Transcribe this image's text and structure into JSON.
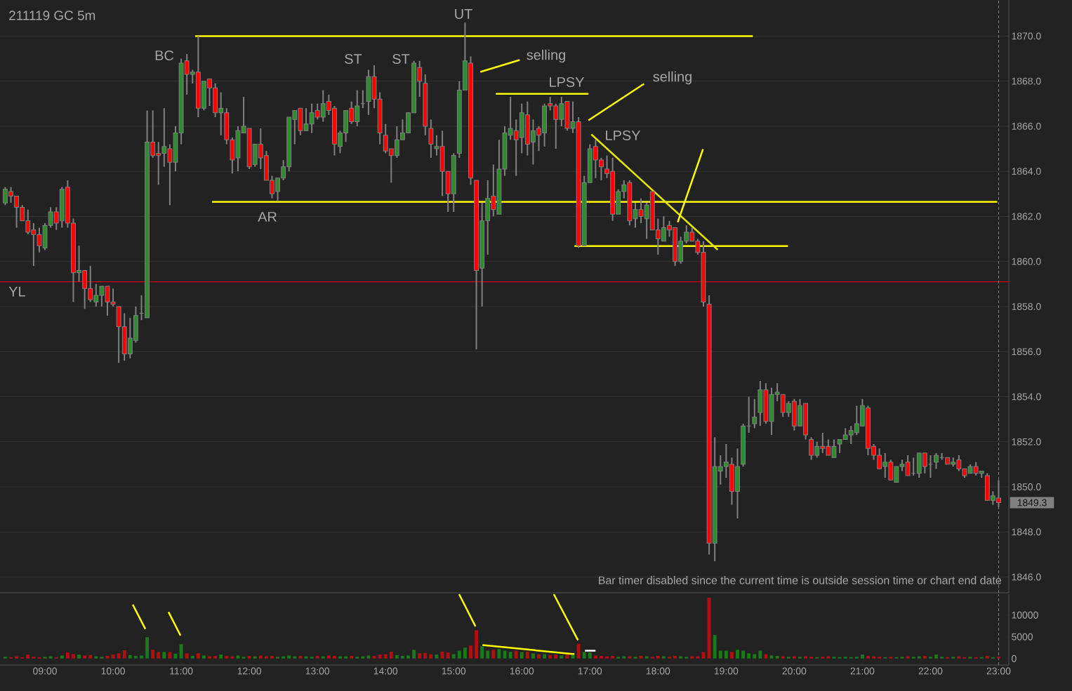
{
  "chart_data": [
    {
      "type": "candlestick",
      "title": "211119 GC 5m",
      "x": [
        8.4167,
        8.5,
        8.5833,
        8.6667,
        8.75,
        8.8333,
        8.9167,
        9,
        9.0833,
        9.1667,
        9.25,
        9.3333,
        9.4167,
        9.5,
        9.5833,
        9.6667,
        9.75,
        9.8333,
        9.9167,
        10,
        10.0833,
        10.1667,
        10.25,
        10.3333,
        10.4167,
        10.5,
        10.5833,
        10.6667,
        10.75,
        10.8333,
        10.9167,
        11,
        11.0833,
        11.1667,
        11.25,
        11.3333,
        11.4167,
        11.5,
        11.5833,
        11.6667,
        11.75,
        11.8333,
        11.9167,
        12,
        12.0833,
        12.1667,
        12.25,
        12.3333,
        12.4167,
        12.5,
        12.5833,
        12.6667,
        12.75,
        12.8333,
        12.9167,
        13,
        13.0833,
        13.1667,
        13.25,
        13.3333,
        13.4167,
        13.5,
        13.5833,
        13.6667,
        13.75,
        13.8333,
        13.9167,
        14,
        14.0833,
        14.1667,
        14.25,
        14.3333,
        14.4167,
        14.5,
        14.5833,
        14.6667,
        14.75,
        14.8333,
        14.9167,
        15,
        15.0833,
        15.1667,
        15.25,
        15.3333,
        15.4167,
        15.5,
        15.5833,
        15.6667,
        15.75,
        15.8333,
        15.9167,
        16,
        16.0833,
        16.1667,
        16.25,
        16.3333,
        16.4167,
        16.5,
        16.5833,
        16.6667,
        16.75,
        16.8333,
        16.9167,
        17,
        17.0833,
        17.1667,
        17.25,
        17.3333,
        17.4167,
        17.5,
        17.5833,
        17.6667,
        17.75,
        17.8333,
        17.9167,
        18,
        18.0833,
        18.1667,
        18.25,
        18.3333,
        18.4167,
        18.5,
        18.5833,
        18.6667,
        18.75,
        18.8333,
        18.9167,
        19,
        19.0833,
        19.1667,
        19.25,
        19.3333,
        19.4167,
        19.5,
        19.5833,
        19.6667,
        19.75,
        19.8333,
        19.9167,
        20,
        20.0833,
        20.1667,
        20.25,
        20.3333,
        20.4167,
        20.5,
        20.5833,
        20.6667,
        20.75,
        20.8333,
        20.9167,
        21,
        21.0833,
        21.1667,
        21.25,
        21.3333,
        21.4167,
        21.5,
        21.5833,
        21.6667,
        21.75,
        21.8333,
        21.9167,
        22,
        22.0833,
        22.1667,
        22.25,
        22.3333,
        22.4167,
        22.5,
        22.5833,
        22.6667,
        22.75,
        22.8333,
        22.9167,
        23
      ],
      "ohlc": [
        [
          1862.6,
          1863.3,
          1862.5,
          1863.2
        ],
        [
          1863.1,
          1863.3,
          1862.6,
          1862.9
        ],
        [
          1862.9,
          1862.9,
          1861.5,
          1862.4
        ],
        [
          1862.4,
          1862.5,
          1861.8,
          1861.8
        ],
        [
          1861.8,
          1862.3,
          1861.2,
          1861.3
        ],
        [
          1861.4,
          1861.7,
          1859.8,
          1861.2
        ],
        [
          1861.2,
          1861.5,
          1860.4,
          1860.7
        ],
        [
          1860.6,
          1861.7,
          1860.5,
          1861.6
        ],
        [
          1861.6,
          1862.4,
          1861.5,
          1862.2
        ],
        [
          1862.2,
          1862.4,
          1861.4,
          1861.7
        ],
        [
          1861.8,
          1863.3,
          1861.5,
          1863.2
        ],
        [
          1863.3,
          1863.6,
          1861.5,
          1861.7
        ],
        [
          1861.7,
          1861.9,
          1858.2,
          1859.5
        ],
        [
          1859.5,
          1860.7,
          1859.1,
          1859.6
        ],
        [
          1859.6,
          1859.6,
          1857.9,
          1858.8
        ],
        [
          1858.8,
          1859.8,
          1858.2,
          1858.3
        ],
        [
          1858.2,
          1859.0,
          1858.0,
          1858.5
        ],
        [
          1858.5,
          1858.9,
          1858.0,
          1858.9
        ],
        [
          1858.9,
          1858.9,
          1857.6,
          1858.2
        ],
        [
          1858.2,
          1858.8,
          1858.0,
          1858.1
        ],
        [
          1858.0,
          1858.0,
          1855.5,
          1857.1
        ],
        [
          1857.1,
          1857.7,
          1855.6,
          1855.9
        ],
        [
          1855.9,
          1857.5,
          1855.7,
          1856.6
        ],
        [
          1856.5,
          1858.0,
          1856.4,
          1857.6
        ],
        [
          1857.7,
          1858.5,
          1857.4,
          1857.7
        ],
        [
          1857.5,
          1866.7,
          1857.5,
          1865.3
        ],
        [
          1865.3,
          1866.7,
          1864.6,
          1864.7
        ],
        [
          1864.8,
          1865.3,
          1863.4,
          1864.7
        ],
        [
          1864.8,
          1866.8,
          1864.2,
          1865.1
        ],
        [
          1865.0,
          1865.2,
          1862.5,
          1864.4
        ],
        [
          1864.4,
          1866.0,
          1864.0,
          1865.7
        ],
        [
          1865.7,
          1869.0,
          1865.2,
          1868.8
        ],
        [
          1868.9,
          1869.2,
          1867.4,
          1868.3
        ],
        [
          1868.3,
          1868.5,
          1867.9,
          1868.4
        ],
        [
          1868.4,
          1870.0,
          1866.4,
          1866.8
        ],
        [
          1866.8,
          1868.0,
          1866.7,
          1868.0
        ],
        [
          1868.1,
          1868.1,
          1866.9,
          1867.7
        ],
        [
          1867.7,
          1867.9,
          1866.4,
          1866.6
        ],
        [
          1866.6,
          1867.5,
          1865.6,
          1866.8
        ],
        [
          1866.6,
          1866.8,
          1865.2,
          1865.4
        ],
        [
          1865.4,
          1865.5,
          1863.9,
          1864.5
        ],
        [
          1864.6,
          1866.0,
          1864.0,
          1865.8
        ],
        [
          1865.7,
          1867.3,
          1865.7,
          1866.0
        ],
        [
          1865.9,
          1865.9,
          1864.1,
          1864.2
        ],
        [
          1864.3,
          1865.2,
          1864.2,
          1865.2
        ],
        [
          1865.2,
          1865.9,
          1864.1,
          1864.6
        ],
        [
          1864.7,
          1864.9,
          1863.6,
          1863.6
        ],
        [
          1863.6,
          1863.8,
          1862.8,
          1863.0
        ],
        [
          1863.1,
          1863.7,
          1862.7,
          1863.7
        ],
        [
          1863.7,
          1864.5,
          1863.6,
          1864.2
        ],
        [
          1864.2,
          1866.4,
          1864.0,
          1866.4
        ],
        [
          1866.3,
          1866.7,
          1865.2,
          1866.7
        ],
        [
          1866.8,
          1866.8,
          1865.6,
          1865.8
        ],
        [
          1865.8,
          1866.8,
          1865.8,
          1866.1
        ],
        [
          1866.1,
          1867.0,
          1865.7,
          1866.6
        ],
        [
          1866.7,
          1867.0,
          1866.3,
          1866.4
        ],
        [
          1866.4,
          1867.6,
          1866.2,
          1867.0
        ],
        [
          1867.1,
          1867.4,
          1866.5,
          1866.7
        ],
        [
          1866.8,
          1866.9,
          1864.7,
          1865.2
        ],
        [
          1865.1,
          1865.8,
          1864.8,
          1865.7
        ],
        [
          1865.7,
          1866.7,
          1865.3,
          1866.7
        ],
        [
          1866.8,
          1867.1,
          1866.1,
          1866.2
        ],
        [
          1866.2,
          1867.6,
          1866.0,
          1866.9
        ],
        [
          1867.0,
          1867.6,
          1866.8,
          1867.0
        ],
        [
          1867.1,
          1868.5,
          1866.5,
          1868.2
        ],
        [
          1868.2,
          1868.7,
          1866.8,
          1867.2
        ],
        [
          1867.2,
          1867.5,
          1865.2,
          1865.7
        ],
        [
          1865.6,
          1866.1,
          1864.8,
          1864.9
        ],
        [
          1865.0,
          1865.0,
          1863.5,
          1864.7
        ],
        [
          1864.7,
          1866.0,
          1864.6,
          1865.4
        ],
        [
          1865.4,
          1866.3,
          1865.4,
          1865.7
        ],
        [
          1865.7,
          1866.6,
          1865.7,
          1866.6
        ],
        [
          1866.6,
          1868.9,
          1866.6,
          1868.8
        ],
        [
          1868.6,
          1868.9,
          1867.3,
          1868.0
        ],
        [
          1867.9,
          1868.3,
          1865.6,
          1866.0
        ],
        [
          1865.9,
          1866.3,
          1864.6,
          1865.2
        ],
        [
          1865.0,
          1865.6,
          1864.7,
          1865.1
        ],
        [
          1865.1,
          1865.8,
          1862.9,
          1864.0
        ],
        [
          1864.0,
          1864.0,
          1862.2,
          1863.0
        ],
        [
          1863.0,
          1864.8,
          1862.2,
          1864.7
        ],
        [
          1864.8,
          1868.0,
          1864.6,
          1867.6
        ],
        [
          1867.6,
          1870.6,
          1867.6,
          1868.9
        ],
        [
          1868.8,
          1869.1,
          1863.4,
          1863.7
        ],
        [
          1863.6,
          1863.6,
          1856.1,
          1859.6
        ],
        [
          1859.7,
          1862.6,
          1858.0,
          1861.8
        ],
        [
          1861.8,
          1863.6,
          1860.3,
          1862.8
        ],
        [
          1862.9,
          1864.3,
          1862.0,
          1862.3
        ],
        [
          1862.1,
          1865.4,
          1862.1,
          1864.1
        ],
        [
          1864.1,
          1866.0,
          1863.8,
          1865.7
        ],
        [
          1865.6,
          1867.3,
          1865.4,
          1865.9
        ],
        [
          1865.8,
          1866.3,
          1863.8,
          1865.4
        ],
        [
          1865.5,
          1867.0,
          1864.8,
          1866.6
        ],
        [
          1866.5,
          1867.1,
          1864.7,
          1865.2
        ],
        [
          1865.3,
          1866.3,
          1864.3,
          1865.8
        ],
        [
          1865.9,
          1866.0,
          1864.9,
          1865.6
        ],
        [
          1865.7,
          1867.0,
          1865.1,
          1866.9
        ],
        [
          1867.0,
          1867.3,
          1866.7,
          1866.9
        ],
        [
          1866.9,
          1867.0,
          1865.0,
          1866.3
        ],
        [
          1866.3,
          1867.3,
          1866.0,
          1867.0
        ],
        [
          1867.1,
          1867.1,
          1865.8,
          1865.9
        ],
        [
          1865.9,
          1867.1,
          1865.7,
          1866.2
        ],
        [
          1866.2,
          1866.4,
          1860.6,
          1860.7
        ],
        [
          1860.7,
          1863.8,
          1860.7,
          1863.5
        ],
        [
          1863.5,
          1865.2,
          1863.5,
          1865.0
        ],
        [
          1865.1,
          1865.4,
          1863.7,
          1864.5
        ],
        [
          1864.5,
          1864.6,
          1863.6,
          1864.2
        ],
        [
          1864.1,
          1864.7,
          1863.7,
          1863.9
        ],
        [
          1864.0,
          1864.6,
          1861.8,
          1862.1
        ],
        [
          1862.1,
          1863.2,
          1862.1,
          1863.1
        ],
        [
          1863.1,
          1863.6,
          1862.8,
          1863.4
        ],
        [
          1863.5,
          1863.6,
          1861.6,
          1861.8
        ],
        [
          1861.9,
          1862.6,
          1861.5,
          1862.3
        ],
        [
          1862.3,
          1862.8,
          1861.7,
          1862.0
        ],
        [
          1861.9,
          1862.6,
          1861.0,
          1862.5
        ],
        [
          1863.1,
          1863.1,
          1861.4,
          1861.4
        ],
        [
          1861.4,
          1861.9,
          1860.3,
          1861.0
        ],
        [
          1860.9,
          1862.0,
          1860.9,
          1861.5
        ],
        [
          1861.6,
          1861.8,
          1861.1,
          1861.4
        ],
        [
          1861.5,
          1861.5,
          1859.8,
          1860.0
        ],
        [
          1860.0,
          1861.1,
          1859.9,
          1860.9
        ],
        [
          1860.9,
          1861.6,
          1860.8,
          1861.3
        ],
        [
          1861.3,
          1861.5,
          1860.9,
          1860.9
        ],
        [
          1860.9,
          1861.0,
          1860.3,
          1860.4
        ],
        [
          1860.4,
          1860.9,
          1858.0,
          1858.2
        ],
        [
          1858.1,
          1858.5,
          1847.0,
          1847.5
        ],
        [
          1847.5,
          1852.2,
          1846.7,
          1850.9
        ],
        [
          1850.7,
          1851.4,
          1850.1,
          1850.9
        ],
        [
          1850.9,
          1851.9,
          1850.4,
          1851.1
        ],
        [
          1851.0,
          1851.3,
          1849.2,
          1849.8
        ],
        [
          1849.8,
          1851.7,
          1848.6,
          1850.9
        ],
        [
          1851.0,
          1852.8,
          1850.9,
          1852.7
        ],
        [
          1852.7,
          1854.0,
          1852.4,
          1852.7
        ],
        [
          1852.8,
          1853.9,
          1852.6,
          1853.1
        ],
        [
          1853.3,
          1854.7,
          1852.7,
          1854.3
        ],
        [
          1854.3,
          1854.6,
          1852.8,
          1852.9
        ],
        [
          1852.9,
          1854.4,
          1852.3,
          1854.1
        ],
        [
          1854.1,
          1854.6,
          1853.8,
          1854.2
        ],
        [
          1854.1,
          1854.1,
          1853.1,
          1853.3
        ],
        [
          1853.3,
          1853.8,
          1853.1,
          1853.7
        ],
        [
          1853.8,
          1853.9,
          1852.5,
          1852.7
        ],
        [
          1852.7,
          1853.9,
          1852.7,
          1853.6
        ],
        [
          1853.7,
          1853.7,
          1852.1,
          1852.3
        ],
        [
          1852.1,
          1852.2,
          1851.2,
          1851.4
        ],
        [
          1851.4,
          1852.0,
          1851.3,
          1851.8
        ],
        [
          1851.8,
          1852.4,
          1851.5,
          1851.7
        ],
        [
          1851.8,
          1852.1,
          1851.4,
          1851.4
        ],
        [
          1851.3,
          1852.1,
          1851.3,
          1851.8
        ],
        [
          1851.9,
          1852.1,
          1851.5,
          1852.1
        ],
        [
          1852.1,
          1852.6,
          1852.1,
          1852.3
        ],
        [
          1852.3,
          1852.7,
          1851.9,
          1852.5
        ],
        [
          1852.4,
          1853.6,
          1852.3,
          1852.8
        ],
        [
          1852.7,
          1853.9,
          1852.7,
          1853.6
        ],
        [
          1853.5,
          1853.6,
          1851.4,
          1851.7
        ],
        [
          1851.8,
          1851.9,
          1851.2,
          1851.4
        ],
        [
          1851.4,
          1851.7,
          1850.8,
          1850.8
        ],
        [
          1850.9,
          1851.5,
          1850.4,
          1851.1
        ],
        [
          1851.1,
          1851.2,
          1850.3,
          1850.3
        ],
        [
          1850.2,
          1850.9,
          1850.2,
          1850.9
        ],
        [
          1850.9,
          1851.2,
          1850.7,
          1851.0
        ],
        [
          1851.1,
          1851.4,
          1850.5,
          1850.5
        ],
        [
          1850.6,
          1851.3,
          1850.5,
          1850.6
        ],
        [
          1850.6,
          1851.5,
          1850.4,
          1851.5
        ],
        [
          1851.5,
          1851.5,
          1850.6,
          1850.9
        ],
        [
          1851.0,
          1851.4,
          1850.4,
          1851.0
        ],
        [
          1851.1,
          1851.5,
          1850.8,
          1851.4
        ],
        [
          1851.3,
          1851.5,
          1851.2,
          1851.3
        ],
        [
          1851.3,
          1851.3,
          1851.0,
          1851.0
        ],
        [
          1851.0,
          1851.3,
          1850.9,
          1851.1
        ],
        [
          1851.2,
          1851.4,
          1850.7,
          1850.8
        ],
        [
          1850.8,
          1850.8,
          1850.4,
          1850.5
        ],
        [
          1850.6,
          1851.0,
          1850.6,
          1850.9
        ],
        [
          1850.9,
          1851.1,
          1850.5,
          1850.6
        ],
        [
          1850.6,
          1850.7,
          1850.4,
          1850.7
        ],
        [
          1850.5,
          1850.6,
          1849.4,
          1849.4
        ],
        [
          1849.4,
          1849.8,
          1849.2,
          1849.6
        ],
        [
          1849.5,
          1850.3,
          1849.1,
          1849.3
        ]
      ],
      "colors": [
        "#2e8b2e",
        "#ff0000",
        "#ff0000",
        "#ff0000",
        "#ff0000",
        "#ff0000",
        "#ff0000",
        "#2e8b2e",
        "#2e8b2e",
        "#ff0000",
        "#2e8b2e",
        "#ff0000",
        "#ff0000",
        "#2e8b2e",
        "#ff0000",
        "#ff0000",
        "#2e8b2e",
        "#2e8b2e",
        "#ff0000",
        "#ff0000",
        "#ff0000",
        "#ff0000",
        "#2e8b2e",
        "#2e8b2e",
        "#808080",
        "#2e8b2e",
        "#ff0000",
        "#ff0000",
        "#2e8b2e",
        "#ff0000",
        "#2e8b2e",
        "#2e8b2e",
        "#ff0000",
        "#2e8b2e",
        "#ff0000",
        "#2e8b2e",
        "#ff0000",
        "#ff0000",
        "#2e8b2e",
        "#ff0000",
        "#ff0000",
        "#2e8b2e",
        "#2e8b2e",
        "#ff0000",
        "#2e8b2e",
        "#ff0000",
        "#ff0000",
        "#ff0000",
        "#2e8b2e",
        "#2e8b2e",
        "#2e8b2e",
        "#2e8b2e",
        "#ff0000",
        "#2e8b2e",
        "#2e8b2e",
        "#ff0000",
        "#2e8b2e",
        "#ff0000",
        "#ff0000",
        "#2e8b2e",
        "#2e8b2e",
        "#ff0000",
        "#2e8b2e",
        "#808080",
        "#2e8b2e",
        "#ff0000",
        "#ff0000",
        "#ff0000",
        "#ff0000",
        "#2e8b2e",
        "#2e8b2e",
        "#2e8b2e",
        "#2e8b2e",
        "#ff0000",
        "#ff0000",
        "#ff0000",
        "#2e8b2e",
        "#ff0000",
        "#ff0000",
        "#2e8b2e",
        "#2e8b2e",
        "#2e8b2e",
        "#ff0000",
        "#ff0000",
        "#2e8b2e",
        "#2e8b2e",
        "#ff0000",
        "#2e8b2e",
        "#2e8b2e",
        "#2e8b2e",
        "#ff0000",
        "#2e8b2e",
        "#ff0000",
        "#2e8b2e",
        "#ff0000",
        "#2e8b2e",
        "#ff0000",
        "#ff0000",
        "#2e8b2e",
        "#ff0000",
        "#2e8b2e",
        "#ff0000",
        "#2e8b2e",
        "#2e8b2e",
        "#ff0000",
        "#ff0000",
        "#ff0000",
        "#ff0000",
        "#2e8b2e",
        "#2e8b2e",
        "#ff0000",
        "#2e8b2e",
        "#ff0000",
        "#2e8b2e",
        "#ff0000",
        "#ff0000",
        "#2e8b2e",
        "#ff0000",
        "#ff0000",
        "#2e8b2e",
        "#2e8b2e",
        "#ff0000",
        "#ff0000",
        "#ff0000",
        "#ff0000",
        "#2e8b2e",
        "#2e8b2e",
        "#2e8b2e",
        "#ff0000",
        "#2e8b2e",
        "#2e8b2e",
        "#808080",
        "#2e8b2e",
        "#2e8b2e",
        "#ff0000",
        "#2e8b2e",
        "#2e8b2e",
        "#ff0000",
        "#2e8b2e",
        "#ff0000",
        "#2e8b2e",
        "#ff0000",
        "#ff0000",
        "#2e8b2e",
        "#ff0000",
        "#ff0000",
        "#2e8b2e",
        "#2e8b2e",
        "#2e8b2e",
        "#2e8b2e",
        "#2e8b2e",
        "#2e8b2e",
        "#ff0000",
        "#ff0000",
        "#ff0000",
        "#2e8b2e",
        "#ff0000",
        "#2e8b2e",
        "#2e8b2e",
        "#ff0000",
        "#808080",
        "#2e8b2e",
        "#ff0000",
        "#808080",
        "#2e8b2e",
        "#808080",
        "#ff0000",
        "#2e8b2e",
        "#ff0000",
        "#ff0000",
        "#2e8b2e",
        "#ff0000",
        "#2e8b2e",
        "#ff0000",
        "#2e8b2e",
        "#ff0000"
      ],
      "xlim": [
        8.34,
        23.15
      ],
      "ylim": [
        1845.3,
        1871.6
      ],
      "yticks": [
        {
          "value": 1846,
          "label": "1846.0"
        },
        {
          "value": 1848,
          "label": "1848.0"
        },
        {
          "value": 1850,
          "label": "1850.0"
        },
        {
          "value": 1852,
          "label": "1852.0"
        },
        {
          "value": 1854,
          "label": "1854.0"
        },
        {
          "value": 1856,
          "label": "1856.0"
        },
        {
          "value": 1858,
          "label": "1858.0"
        },
        {
          "value": 1860,
          "label": "1860.0"
        },
        {
          "value": 1862,
          "label": "1862.0"
        },
        {
          "value": 1864,
          "label": "1864.0"
        },
        {
          "value": 1866,
          "label": "1866.0"
        },
        {
          "value": 1868,
          "label": "1868.0"
        },
        {
          "value": 1870,
          "label": "1870.0"
        }
      ],
      "grid": "y",
      "tick_labels": "y",
      "annotations": [
        "BC",
        "AR",
        "ST",
        "ST",
        "UT",
        "selling",
        "LPSY",
        "selling",
        "LPSY",
        {
          "text": "1849.3",
          "x": 23.0,
          "y": 1849.3
        },
        "Bar timer disabled since the current time is outside session time or chart end date"
      ],
      "ref_lines": [
        {
          "axis": "y",
          "value": 1859.1,
          "label": "YL",
          "color": "#cc0000"
        },
        {
          "axis": "x",
          "value": 23,
          "color": "#808080",
          "line_style": "dashed"
        }
      ],
      "series": [
        {
          "type": "line",
          "x": [
            11.206,
            19.392
          ],
          "values": [
            1870.0,
            1870.0
          ],
          "color": "#ffff00"
        },
        {
          "type": "line",
          "x": [
            11.454,
            22.979
          ],
          "values": [
            1862.64,
            1862.64
          ],
          "color": "#ffff00"
        },
        {
          "type": "line",
          "x": [
            16.773,
            19.907
          ],
          "values": [
            1860.68,
            1860.68
          ],
          "color": "#ffff00"
        },
        {
          "type": "line",
          "x": [
            15.619,
            16.979
          ],
          "values": [
            1867.44,
            1867.44
          ],
          "color": "#ffff00"
        },
        {
          "type": "line",
          "x": [
            17.021,
            18.876
          ],
          "values": [
            1865.64,
            1860.52
          ],
          "color": "#e6e600"
        },
        {
          "type": "line",
          "x": [
            15.969,
            15.392
          ],
          "values": [
            1868.94,
            1868.41
          ],
          "color": "#ffff00"
        },
        {
          "type": "line",
          "x": [
            17.794,
            16.979
          ],
          "values": [
            1867.88,
            1866.26
          ],
          "color": "#ffff00"
        },
        {
          "type": "line",
          "x": [
            18.66,
            18.289
          ],
          "values": [
            1864.98,
            1861.74
          ],
          "color": "#ffff00"
        }
      ]
    },
    {
      "type": "bar",
      "x": [
        8.4167,
        8.5,
        8.5833,
        8.6667,
        8.75,
        8.8333,
        8.9167,
        9,
        9.0833,
        9.1667,
        9.25,
        9.3333,
        9.4167,
        9.5,
        9.5833,
        9.6667,
        9.75,
        9.8333,
        9.9167,
        10,
        10.0833,
        10.1667,
        10.25,
        10.3333,
        10.4167,
        10.5,
        10.5833,
        10.6667,
        10.75,
        10.8333,
        10.9167,
        11,
        11.0833,
        11.1667,
        11.25,
        11.3333,
        11.4167,
        11.5,
        11.5833,
        11.6667,
        11.75,
        11.8333,
        11.9167,
        12,
        12.0833,
        12.1667,
        12.25,
        12.3333,
        12.4167,
        12.5,
        12.5833,
        12.6667,
        12.75,
        12.8333,
        12.9167,
        13,
        13.0833,
        13.1667,
        13.25,
        13.3333,
        13.4167,
        13.5,
        13.5833,
        13.6667,
        13.75,
        13.8333,
        13.9167,
        14,
        14.0833,
        14.1667,
        14.25,
        14.3333,
        14.4167,
        14.5,
        14.5833,
        14.6667,
        14.75,
        14.8333,
        14.9167,
        15,
        15.0833,
        15.1667,
        15.25,
        15.3333,
        15.4167,
        15.5,
        15.5833,
        15.6667,
        15.75,
        15.8333,
        15.9167,
        16,
        16.0833,
        16.1667,
        16.25,
        16.3333,
        16.4167,
        16.5,
        16.5833,
        16.6667,
        16.75,
        16.8333,
        16.9167,
        17,
        17.0833,
        17.1667,
        17.25,
        17.3333,
        17.4167,
        17.5,
        17.5833,
        17.6667,
        17.75,
        17.8333,
        17.9167,
        18,
        18.0833,
        18.1667,
        18.25,
        18.3333,
        18.4167,
        18.5,
        18.5833,
        18.6667,
        18.75,
        18.8333,
        18.9167,
        19,
        19.0833,
        19.1667,
        19.25,
        19.3333,
        19.4167,
        19.5,
        19.5833,
        19.6667,
        19.75,
        19.8333,
        19.9167,
        20,
        20.0833,
        20.1667,
        20.25,
        20.3333,
        20.4167,
        20.5,
        20.5833,
        20.6667,
        20.75,
        20.8333,
        20.9167,
        21,
        21.0833,
        21.1667,
        21.25,
        21.3333,
        21.4167,
        21.5,
        21.5833,
        21.6667,
        21.75,
        21.8333,
        21.9167,
        22,
        22.0833,
        22.1667,
        22.25,
        22.3333,
        22.4167,
        22.5,
        22.5833,
        22.6667,
        22.75,
        22.8333,
        22.9167,
        23
      ],
      "values": [
        400,
        300,
        500,
        300,
        900,
        400,
        300,
        400,
        500,
        300,
        700,
        1400,
        1000,
        900,
        700,
        800,
        500,
        400,
        600,
        900,
        1200,
        1900,
        800,
        600,
        700,
        4900,
        2000,
        1500,
        1500,
        1500,
        1100,
        3300,
        1200,
        600,
        1200,
        700,
        500,
        600,
        900,
        600,
        500,
        700,
        400,
        600,
        500,
        700,
        500,
        600,
        400,
        500,
        700,
        500,
        600,
        500,
        400,
        600,
        500,
        700,
        600,
        500,
        500,
        600,
        400,
        500,
        700,
        600,
        900,
        1000,
        1600,
        800,
        600,
        700,
        2000,
        1200,
        1300,
        1000,
        900,
        1600,
        1400,
        1000,
        1800,
        2500,
        3000,
        6500,
        2800,
        1800,
        2000,
        2200,
        1800,
        1500,
        1800,
        1500,
        1600,
        1200,
        1000,
        1000,
        800,
        900,
        700,
        900,
        800,
        3400,
        1500,
        1400,
        700,
        600,
        500,
        600,
        400,
        500,
        500,
        400,
        600,
        500,
        400,
        600,
        500,
        400,
        600,
        500,
        400,
        500,
        500,
        1500,
        14000,
        5400,
        1800,
        1800,
        1500,
        2000,
        1800,
        1200,
        1000,
        1800,
        1000,
        700,
        600,
        500,
        400,
        500,
        400,
        500,
        400,
        300,
        400,
        500,
        400,
        300,
        400,
        300,
        400,
        900,
        600,
        500,
        400,
        300,
        400,
        300,
        400,
        500,
        400,
        500,
        600,
        400,
        900,
        400,
        300,
        400,
        500,
        300,
        400,
        300,
        300,
        600,
        300,
        400
      ],
      "colors": [
        "#1a7a1a",
        "#b01010",
        "#b01010",
        "#b01010",
        "#b01010",
        "#b01010",
        "#b01010",
        "#1a7a1a",
        "#1a7a1a",
        "#b01010",
        "#1a7a1a",
        "#b01010",
        "#b01010",
        "#1a7a1a",
        "#b01010",
        "#b01010",
        "#1a7a1a",
        "#1a7a1a",
        "#b01010",
        "#b01010",
        "#b01010",
        "#b01010",
        "#1a7a1a",
        "#1a7a1a",
        "#1a7a1a",
        "#1a7a1a",
        "#b01010",
        "#b01010",
        "#1a7a1a",
        "#b01010",
        "#1a7a1a",
        "#1a7a1a",
        "#b01010",
        "#1a7a1a",
        "#b01010",
        "#1a7a1a",
        "#b01010",
        "#b01010",
        "#1a7a1a",
        "#b01010",
        "#b01010",
        "#1a7a1a",
        "#1a7a1a",
        "#b01010",
        "#1a7a1a",
        "#b01010",
        "#b01010",
        "#b01010",
        "#1a7a1a",
        "#1a7a1a",
        "#1a7a1a",
        "#1a7a1a",
        "#b01010",
        "#1a7a1a",
        "#1a7a1a",
        "#b01010",
        "#1a7a1a",
        "#b01010",
        "#b01010",
        "#1a7a1a",
        "#1a7a1a",
        "#b01010",
        "#1a7a1a",
        "#1a7a1a",
        "#1a7a1a",
        "#b01010",
        "#b01010",
        "#b01010",
        "#b01010",
        "#1a7a1a",
        "#1a7a1a",
        "#1a7a1a",
        "#1a7a1a",
        "#b01010",
        "#b01010",
        "#b01010",
        "#1a7a1a",
        "#b01010",
        "#b01010",
        "#1a7a1a",
        "#1a7a1a",
        "#1a7a1a",
        "#b01010",
        "#b01010",
        "#1a7a1a",
        "#1a7a1a",
        "#b01010",
        "#1a7a1a",
        "#1a7a1a",
        "#1a7a1a",
        "#b01010",
        "#1a7a1a",
        "#b01010",
        "#1a7a1a",
        "#b01010",
        "#1a7a1a",
        "#b01010",
        "#b01010",
        "#1a7a1a",
        "#b01010",
        "#1a7a1a",
        "#b01010",
        "#1a7a1a",
        "#1a7a1a",
        "#b01010",
        "#b01010",
        "#b01010",
        "#b01010",
        "#1a7a1a",
        "#1a7a1a",
        "#b01010",
        "#1a7a1a",
        "#b01010",
        "#1a7a1a",
        "#b01010",
        "#b01010",
        "#1a7a1a",
        "#b01010",
        "#b01010",
        "#1a7a1a",
        "#1a7a1a",
        "#b01010",
        "#b01010",
        "#b01010",
        "#b01010",
        "#1a7a1a",
        "#1a7a1a",
        "#1a7a1a",
        "#b01010",
        "#1a7a1a",
        "#1a7a1a",
        "#1a7a1a",
        "#1a7a1a",
        "#1a7a1a",
        "#b01010",
        "#1a7a1a",
        "#1a7a1a",
        "#b01010",
        "#1a7a1a",
        "#b01010",
        "#1a7a1a",
        "#b01010",
        "#b01010",
        "#1a7a1a",
        "#b01010",
        "#b01010",
        "#1a7a1a",
        "#1a7a1a",
        "#1a7a1a",
        "#1a7a1a",
        "#1a7a1a",
        "#1a7a1a",
        "#b01010",
        "#b01010",
        "#b01010",
        "#1a7a1a",
        "#b01010",
        "#1a7a1a",
        "#1a7a1a",
        "#b01010",
        "#1a7a1a",
        "#1a7a1a",
        "#b01010",
        "#1a7a1a",
        "#1a7a1a",
        "#1a7a1a",
        "#b01010",
        "#1a7a1a",
        "#b01010",
        "#b01010",
        "#1a7a1a",
        "#b01010",
        "#1a7a1a",
        "#b01010",
        "#1a7a1a",
        "#b01010"
      ],
      "xlim": [
        8.34,
        23.15
      ],
      "ylim": [
        -1500,
        14800
      ],
      "xticks": [
        {
          "value": 9,
          "label": "09:00"
        },
        {
          "value": 10,
          "label": "10:00"
        },
        {
          "value": 11,
          "label": "11:00"
        },
        {
          "value": 12,
          "label": "12:00"
        },
        {
          "value": 13,
          "label": "13:00"
        },
        {
          "value": 14,
          "label": "14:00"
        },
        {
          "value": 15,
          "label": "15:00"
        },
        {
          "value": 16,
          "label": "16:00"
        },
        {
          "value": 17,
          "label": "17:00"
        },
        {
          "value": 18,
          "label": "18:00"
        },
        {
          "value": 19,
          "label": "19:00"
        },
        {
          "value": 20,
          "label": "20:00"
        },
        {
          "value": 21,
          "label": "21:00"
        },
        {
          "value": 22,
          "label": "22:00"
        },
        {
          "value": 23,
          "label": "23:00"
        }
      ],
      "yticks": [
        0,
        5000,
        10000
      ],
      "ref_lines": [
        {
          "axis": "x",
          "value": 23,
          "color": "#808080",
          "line_style": "dashed"
        }
      ],
      "series": [
        {
          "type": "line",
          "x": [
            10.289,
            10.474
          ],
          "values": [
            12400,
            6800
          ],
          "color": "#ffff00"
        },
        {
          "type": "line",
          "x": [
            10.814,
            10.99
          ],
          "values": [
            10700,
            5300
          ],
          "color": "#ffff00"
        },
        {
          "type": "line",
          "x": [
            15.08,
            15.32
          ],
          "values": [
            14800,
            7400
          ],
          "color": "#ffff00"
        },
        {
          "type": "line",
          "x": [
            16.47,
            16.825
          ],
          "values": [
            14800,
            4200
          ],
          "color": "#ffff00"
        },
        {
          "type": "line",
          "x": [
            15.423,
            16.773
          ],
          "values": [
            3100,
            1000
          ],
          "color": "#ffff00"
        },
        {
          "type": "line",
          "x": [
            16.928,
            17.082
          ],
          "values": [
            1800,
            1800
          ],
          "color": "#ffffff"
        }
      ]
    }
  ]
}
